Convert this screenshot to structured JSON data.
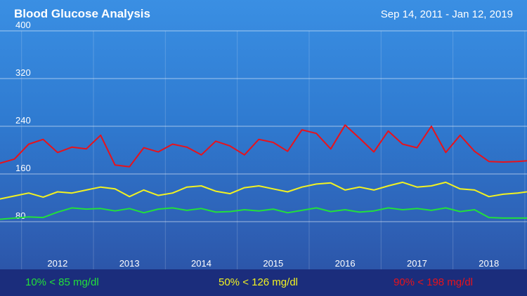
{
  "header": {
    "title": "Blood Glucose Analysis",
    "date_range": "Sep 14, 2011 - Jan 12, 2019"
  },
  "chart_data": {
    "type": "line",
    "title": "Blood Glucose Analysis",
    "xlabel": "",
    "ylabel": "",
    "ylim": [
      0,
      400
    ],
    "xlim": [
      2011.7,
      2019.03
    ],
    "yticks": [
      80,
      160,
      240,
      320,
      400
    ],
    "xticks": [
      2012,
      2013,
      2014,
      2015,
      2016,
      2017,
      2018
    ],
    "grid": true,
    "legend_position": "bottom",
    "series": [
      {
        "name": "10% < 85 mg/dl",
        "color": "#22e03a",
        "x": [
          2011.7,
          2011.9,
          2012.1,
          2012.3,
          2012.5,
          2012.7,
          2012.9,
          2013.1,
          2013.3,
          2013.5,
          2013.7,
          2013.9,
          2014.1,
          2014.3,
          2014.5,
          2014.7,
          2014.9,
          2015.1,
          2015.3,
          2015.5,
          2015.7,
          2015.9,
          2016.1,
          2016.3,
          2016.5,
          2016.7,
          2016.9,
          2017.1,
          2017.3,
          2017.5,
          2017.7,
          2017.9,
          2018.1,
          2018.3,
          2018.5,
          2018.7,
          2018.9,
          2019.03
        ],
        "y": [
          84,
          86,
          88,
          87,
          96,
          103,
          101,
          102,
          98,
          102,
          95,
          101,
          103,
          99,
          102,
          96,
          97,
          100,
          98,
          101,
          95,
          99,
          103,
          97,
          100,
          96,
          98,
          103,
          100,
          102,
          99,
          103,
          97,
          100,
          87,
          86,
          86,
          86
        ]
      },
      {
        "name": "50% < 126 mg/dl",
        "color": "#f2f221",
        "x": [
          2011.7,
          2011.9,
          2012.1,
          2012.3,
          2012.5,
          2012.7,
          2012.9,
          2013.1,
          2013.3,
          2013.5,
          2013.7,
          2013.9,
          2014.1,
          2014.3,
          2014.5,
          2014.7,
          2014.9,
          2015.1,
          2015.3,
          2015.5,
          2015.7,
          2015.9,
          2016.1,
          2016.3,
          2016.5,
          2016.7,
          2016.9,
          2017.1,
          2017.3,
          2017.5,
          2017.7,
          2017.9,
          2018.1,
          2018.3,
          2018.5,
          2018.7,
          2018.9,
          2019.03
        ],
        "y": [
          118,
          123,
          128,
          121,
          130,
          128,
          133,
          138,
          135,
          122,
          133,
          124,
          128,
          138,
          140,
          131,
          127,
          137,
          140,
          135,
          130,
          138,
          143,
          145,
          133,
          138,
          133,
          140,
          146,
          138,
          140,
          146,
          135,
          133,
          122,
          126,
          128,
          130
        ]
      },
      {
        "name": "90% < 198 mg/dl",
        "color": "#e8121b",
        "x": [
          2011.7,
          2011.9,
          2012.1,
          2012.3,
          2012.5,
          2012.7,
          2012.9,
          2013.1,
          2013.3,
          2013.5,
          2013.7,
          2013.9,
          2014.1,
          2014.3,
          2014.5,
          2014.7,
          2014.9,
          2015.1,
          2015.3,
          2015.5,
          2015.7,
          2015.9,
          2016.1,
          2016.3,
          2016.5,
          2016.7,
          2016.9,
          2017.1,
          2017.3,
          2017.5,
          2017.7,
          2017.9,
          2018.1,
          2018.3,
          2018.5,
          2018.7,
          2018.9,
          2019.03
        ],
        "y": [
          178,
          185,
          210,
          218,
          196,
          205,
          202,
          225,
          175,
          172,
          204,
          197,
          210,
          205,
          192,
          215,
          207,
          192,
          218,
          213,
          198,
          234,
          228,
          202,
          242,
          220,
          197,
          232,
          210,
          204,
          240,
          196,
          225,
          198,
          181,
          180,
          181,
          182
        ]
      }
    ]
  }
}
